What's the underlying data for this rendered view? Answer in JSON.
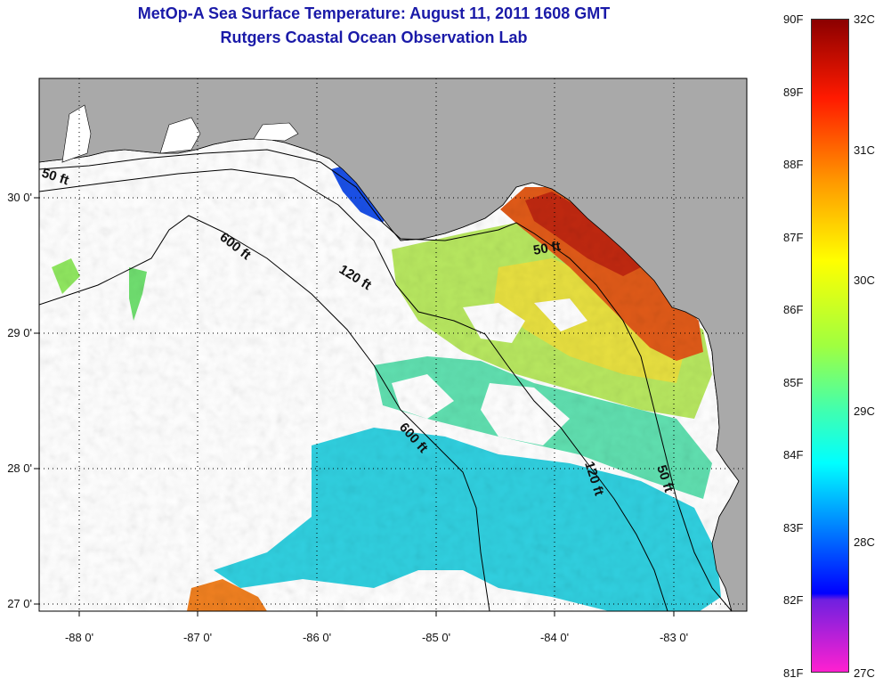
{
  "title": {
    "line1": "MetOp-A Sea Surface Temperature:  August 11, 2011 1608 GMT",
    "line2": "Rutgers Coastal Ocean Observation Lab"
  },
  "axes": {
    "x_ticks": [
      "-88 0'",
      "-87 0'",
      "-86 0'",
      "-85 0'",
      "-84 0'",
      "-83 0'"
    ],
    "y_ticks": [
      "30 0'",
      "29 0'",
      "28 0'",
      "27 0'"
    ]
  },
  "contours": {
    "label_50_west": "50 ft",
    "label_600_north": "600 ft",
    "label_120_north": "120 ft",
    "label_50_east": "50 ft",
    "label_600_south": "600 ft",
    "label_120_south": "120 ft",
    "label_50_south": "50 ft"
  },
  "colorbar": {
    "fahrenheit": [
      "90F",
      "89F",
      "88F",
      "87F",
      "86F",
      "85F",
      "84F",
      "83F",
      "82F",
      "81F"
    ],
    "celsius": [
      "32C",
      "31C",
      "30C",
      "29C",
      "28C",
      "27C"
    ]
  },
  "colors": {
    "land": "#a9a9a9",
    "title": "#1a1aa8",
    "hot": "#d03010",
    "warm": "#e8e030",
    "mid": "#60e0a0",
    "cool": "#30c8e8",
    "cold": "#1030e0"
  }
}
